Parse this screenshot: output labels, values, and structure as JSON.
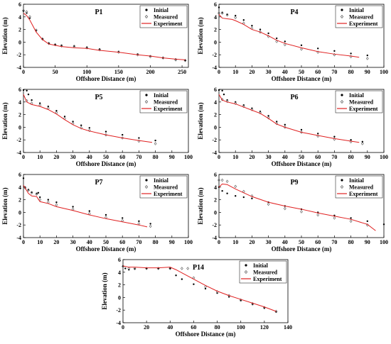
{
  "colors": {
    "initial": "#000000",
    "measured": "#555555",
    "experiment": "#e02020",
    "axis": "#000000",
    "background": "#ffffff"
  },
  "legend_labels": {
    "initial": "Initial",
    "measured": "Measured",
    "experiment": "Experiment"
  },
  "chart_data": [
    {
      "type": "scatter",
      "title": "P1",
      "xlabel": "Offshore Distance (m)",
      "ylabel": "Elevation (m)",
      "xlim": [
        0,
        260
      ],
      "ylim": [
        -4,
        6
      ],
      "xticks": [
        0,
        50,
        100,
        150,
        200,
        250
      ],
      "yticks": [
        -4,
        -2,
        0,
        2,
        4,
        6
      ],
      "legend_position": "top-right",
      "series": [
        {
          "name": "Initial",
          "style": "dots",
          "x": [
            0,
            5,
            10,
            20,
            30,
            40,
            50,
            60,
            80,
            100,
            120,
            150,
            180,
            200,
            220,
            240,
            255
          ],
          "y": [
            4.9,
            4.6,
            3.8,
            1.8,
            0.5,
            -0.2,
            -0.4,
            -0.5,
            -0.6,
            -0.8,
            -1.1,
            -1.5,
            -1.9,
            -2.2,
            -2.5,
            -2.7,
            -2.9
          ]
        },
        {
          "name": "Measured",
          "style": "diamonds",
          "x": [
            0,
            5,
            10,
            20,
            30,
            40,
            50,
            60,
            80,
            100,
            120,
            150,
            180,
            200,
            220,
            240,
            255
          ],
          "y": [
            5.0,
            4.8,
            4.0,
            1.9,
            0.5,
            -0.2,
            -0.4,
            -0.6,
            -0.7,
            -0.9,
            -1.2,
            -1.6,
            -2.0,
            -2.3,
            -2.5,
            -2.8,
            -2.9
          ]
        },
        {
          "name": "Experiment",
          "style": "line",
          "x": [
            0,
            5,
            10,
            20,
            30,
            40,
            50,
            60,
            80,
            100,
            120,
            150,
            180,
            200,
            220,
            240,
            255
          ],
          "y": [
            4.6,
            4.2,
            3.5,
            1.6,
            0.4,
            -0.3,
            -0.5,
            -0.7,
            -0.9,
            -1.0,
            -1.3,
            -1.6,
            -2.0,
            -2.2,
            -2.5,
            -2.7,
            -2.8
          ]
        }
      ]
    },
    {
      "type": "scatter",
      "title": "P4",
      "xlabel": "Offshore Distance (m)",
      "ylabel": "Elevation (m)",
      "xlim": [
        0,
        100
      ],
      "ylim": [
        -4,
        6
      ],
      "xticks": [
        0,
        10,
        20,
        30,
        40,
        50,
        60,
        70,
        80,
        90,
        100
      ],
      "yticks": [
        -4,
        -2,
        0,
        2,
        4,
        6
      ],
      "legend_position": "top-right",
      "series": [
        {
          "name": "Initial",
          "style": "dots",
          "x": [
            0,
            2,
            5,
            10,
            15,
            20,
            25,
            30,
            35,
            40,
            50,
            60,
            70,
            80,
            90
          ],
          "y": [
            5.5,
            4.7,
            4.4,
            4.2,
            3.5,
            2.6,
            2.0,
            1.4,
            0.6,
            0.1,
            -0.5,
            -1.0,
            -1.4,
            -1.8,
            -2.1
          ]
        },
        {
          "name": "Measured",
          "style": "diamonds",
          "x": [
            0,
            2,
            5,
            10,
            15,
            20,
            25,
            30,
            35,
            40,
            50,
            60,
            70,
            80,
            90
          ],
          "y": [
            4.6,
            4.6,
            4.3,
            3.9,
            3.0,
            2.2,
            1.6,
            0.9,
            0.1,
            -0.4,
            -1.1,
            -1.6,
            -2.0,
            -2.3,
            -2.6
          ]
        },
        {
          "name": "Experiment",
          "style": "line",
          "x": [
            0,
            2,
            5,
            8,
            10,
            15,
            20,
            25,
            30,
            35,
            40,
            50,
            60,
            70,
            80,
            85
          ],
          "y": [
            4.4,
            3.8,
            3.7,
            3.6,
            3.4,
            2.8,
            2.0,
            1.6,
            1.0,
            0.3,
            -0.2,
            -0.9,
            -1.5,
            -1.9,
            -2.2,
            -2.4
          ]
        }
      ]
    },
    {
      "type": "scatter",
      "title": "P5",
      "xlabel": "Offshore Distance (m)",
      "ylabel": "Elevation (m)",
      "xlim": [
        0,
        100
      ],
      "ylim": [
        -4,
        6
      ],
      "xticks": [
        0,
        10,
        20,
        30,
        40,
        50,
        60,
        70,
        80,
        90,
        100
      ],
      "yticks": [
        -4,
        -2,
        0,
        2,
        4,
        6
      ],
      "legend_position": "top-right",
      "series": [
        {
          "name": "Initial",
          "style": "dots",
          "x": [
            0,
            2,
            3,
            5,
            10,
            15,
            20,
            25,
            30,
            35,
            40,
            50,
            60,
            70,
            80
          ],
          "y": [
            5.9,
            5.8,
            5.2,
            4.3,
            3.8,
            3.3,
            2.6,
            1.7,
            0.9,
            0.3,
            -0.1,
            -0.7,
            -1.2,
            -1.7,
            -2.1
          ]
        },
        {
          "name": "Measured",
          "style": "diamonds",
          "x": [
            2,
            5,
            10,
            15,
            20,
            25,
            30,
            35,
            40,
            50,
            60,
            70,
            80
          ],
          "y": [
            4.2,
            3.8,
            3.5,
            3.0,
            2.3,
            1.4,
            0.6,
            -0.1,
            -0.5,
            -1.2,
            -1.7,
            -2.2,
            -2.6
          ]
        },
        {
          "name": "Experiment",
          "style": "line",
          "x": [
            0,
            2,
            5,
            10,
            15,
            20,
            25,
            30,
            35,
            40,
            50,
            60,
            70,
            78
          ],
          "y": [
            5.2,
            4.0,
            3.6,
            3.3,
            2.8,
            2.1,
            1.2,
            0.4,
            -0.2,
            -0.6,
            -1.2,
            -1.7,
            -2.1,
            -2.4
          ]
        }
      ]
    },
    {
      "type": "scatter",
      "title": "P6",
      "xlabel": "Offshore Distance (m)",
      "ylabel": "Elevation (m)",
      "xlim": [
        0,
        100
      ],
      "ylim": [
        -4,
        6
      ],
      "xticks": [
        0,
        10,
        20,
        30,
        40,
        50,
        60,
        70,
        80,
        90,
        100
      ],
      "yticks": [
        -4,
        -2,
        0,
        2,
        4,
        6
      ],
      "legend_position": "top-right",
      "series": [
        {
          "name": "Initial",
          "style": "dots",
          "x": [
            0,
            2,
            3,
            5,
            10,
            15,
            20,
            25,
            30,
            35,
            40,
            50,
            60,
            70,
            80,
            87
          ],
          "y": [
            5.9,
            5.8,
            5.2,
            4.3,
            4.0,
            3.5,
            3.0,
            2.5,
            1.8,
            0.9,
            0.4,
            -0.4,
            -1.0,
            -1.5,
            -2.0,
            -2.3
          ]
        },
        {
          "name": "Measured",
          "style": "diamonds",
          "x": [
            2,
            5,
            10,
            15,
            20,
            25,
            30,
            35,
            40,
            50,
            60,
            70,
            80,
            87
          ],
          "y": [
            4.4,
            4.1,
            3.8,
            3.3,
            2.8,
            2.3,
            1.5,
            0.6,
            0.0,
            -0.8,
            -1.4,
            -1.9,
            -2.3,
            -2.6
          ]
        },
        {
          "name": "Experiment",
          "style": "line",
          "x": [
            0,
            2,
            5,
            10,
            15,
            20,
            25,
            30,
            35,
            40,
            50,
            60,
            70,
            80,
            85
          ],
          "y": [
            5.2,
            4.3,
            4.0,
            3.7,
            3.2,
            2.7,
            2.2,
            1.4,
            0.5,
            0.0,
            -0.8,
            -1.3,
            -1.8,
            -2.2,
            -2.4
          ]
        }
      ]
    },
    {
      "type": "scatter",
      "title": "P7",
      "xlabel": "Offshore Distance (m)",
      "ylabel": "Elevation (m)",
      "xlim": [
        0,
        100
      ],
      "ylim": [
        -4,
        6
      ],
      "xticks": [
        0,
        10,
        20,
        30,
        40,
        50,
        60,
        70,
        80,
        90,
        100
      ],
      "yticks": [
        -4,
        -2,
        0,
        2,
        4,
        6
      ],
      "legend_position": "top-right",
      "series": [
        {
          "name": "Initial",
          "style": "dots",
          "x": [
            0,
            1,
            3,
            5,
            8,
            9,
            10,
            15,
            20,
            30,
            40,
            50,
            60,
            70,
            77
          ],
          "y": [
            5.4,
            4.0,
            3.6,
            3.2,
            3.0,
            3.1,
            2.4,
            2.0,
            1.6,
            0.9,
            0.2,
            -0.4,
            -0.9,
            -1.4,
            -1.8
          ]
        },
        {
          "name": "Measured",
          "style": "diamonds",
          "x": [
            1,
            3,
            5,
            8,
            10,
            15,
            20,
            30,
            40,
            50,
            60,
            70,
            77
          ],
          "y": [
            3.9,
            3.5,
            3.1,
            2.9,
            2.0,
            1.6,
            1.2,
            0.5,
            -0.2,
            -0.8,
            -1.3,
            -1.8,
            -2.2
          ]
        },
        {
          "name": "Experiment",
          "style": "line",
          "x": [
            0,
            3,
            5,
            8,
            10,
            15,
            20,
            30,
            40,
            50,
            60,
            70,
            75
          ],
          "y": [
            4.3,
            3.0,
            2.6,
            2.5,
            1.7,
            1.4,
            0.9,
            0.3,
            -0.4,
            -1.0,
            -1.5,
            -2.0,
            -2.3
          ]
        }
      ]
    },
    {
      "type": "scatter",
      "title": "P9",
      "xlabel": "Offshore Distance (m)",
      "ylabel": "Elevation (m)",
      "xlim": [
        0,
        100
      ],
      "ylim": [
        -4,
        6
      ],
      "xticks": [
        0,
        10,
        20,
        30,
        40,
        50,
        60,
        70,
        80,
        90,
        100
      ],
      "yticks": [
        -4,
        -2,
        0,
        2,
        4,
        6
      ],
      "legend_position": "top-right",
      "series": [
        {
          "name": "Initial",
          "style": "dots",
          "x": [
            0,
            2,
            5,
            10,
            15,
            20,
            30,
            40,
            50,
            60,
            70,
            80,
            90,
            100
          ],
          "y": [
            4.0,
            3.4,
            3.0,
            2.6,
            2.4,
            2.2,
            1.6,
            1.0,
            0.5,
            0.0,
            -0.5,
            -0.9,
            -1.4,
            -1.9
          ]
        },
        {
          "name": "Measured",
          "style": "diamonds",
          "x": [
            0,
            2,
            5,
            10,
            15,
            20,
            30,
            40,
            50,
            60,
            70,
            80,
            90
          ],
          "y": [
            5.1,
            5.1,
            4.9,
            4.1,
            3.3,
            2.6,
            1.3,
            0.6,
            0.1,
            -0.4,
            -0.9,
            -1.4,
            -2.0
          ]
        },
        {
          "name": "Experiment",
          "style": "line",
          "x": [
            0,
            2,
            5,
            10,
            15,
            20,
            30,
            40,
            50,
            60,
            70,
            80,
            90,
            95
          ],
          "y": [
            4.0,
            4.5,
            4.4,
            3.7,
            3.1,
            2.5,
            1.6,
            1.0,
            0.5,
            -0.1,
            -0.6,
            -1.1,
            -1.9,
            -2.9
          ]
        }
      ]
    },
    {
      "type": "scatter",
      "title": "P14",
      "xlabel": "Offshore Distance (m)",
      "ylabel": "Elevation (m)",
      "xlim": [
        0,
        140
      ],
      "ylim": [
        -4,
        6
      ],
      "xticks": [
        0,
        20,
        40,
        60,
        80,
        100,
        120,
        140
      ],
      "yticks": [
        -4,
        -2,
        0,
        2,
        4,
        6
      ],
      "legend_position": "top-right",
      "series": [
        {
          "name": "Initial",
          "style": "dots",
          "x": [
            0,
            2,
            5,
            10,
            20,
            30,
            40,
            45,
            50,
            60,
            70,
            80,
            90,
            100,
            110,
            120,
            130
          ],
          "y": [
            5.0,
            4.6,
            4.4,
            4.5,
            4.6,
            4.6,
            4.6,
            3.5,
            2.9,
            2.1,
            1.4,
            0.7,
            0.1,
            -0.5,
            -1.1,
            -1.7,
            -2.3
          ]
        },
        {
          "name": "Measured",
          "style": "diamonds",
          "x": [
            0,
            5,
            10,
            20,
            30,
            40,
            50,
            55,
            60,
            70,
            80,
            90,
            100,
            110,
            120,
            130
          ],
          "y": [
            4.9,
            4.6,
            4.6,
            4.6,
            4.6,
            4.6,
            4.6,
            4.6,
            3.1,
            1.7,
            0.9,
            0.3,
            -0.4,
            -1.0,
            -1.6,
            -2.2
          ]
        },
        {
          "name": "Experiment",
          "style": "line",
          "x": [
            0,
            5,
            10,
            20,
            30,
            40,
            45,
            50,
            60,
            70,
            80,
            90,
            100,
            110,
            120,
            130
          ],
          "y": [
            5.0,
            4.8,
            4.8,
            4.7,
            4.7,
            4.8,
            4.4,
            3.9,
            2.9,
            1.9,
            1.0,
            0.3,
            -0.3,
            -0.9,
            -1.5,
            -2.2
          ]
        }
      ]
    }
  ]
}
